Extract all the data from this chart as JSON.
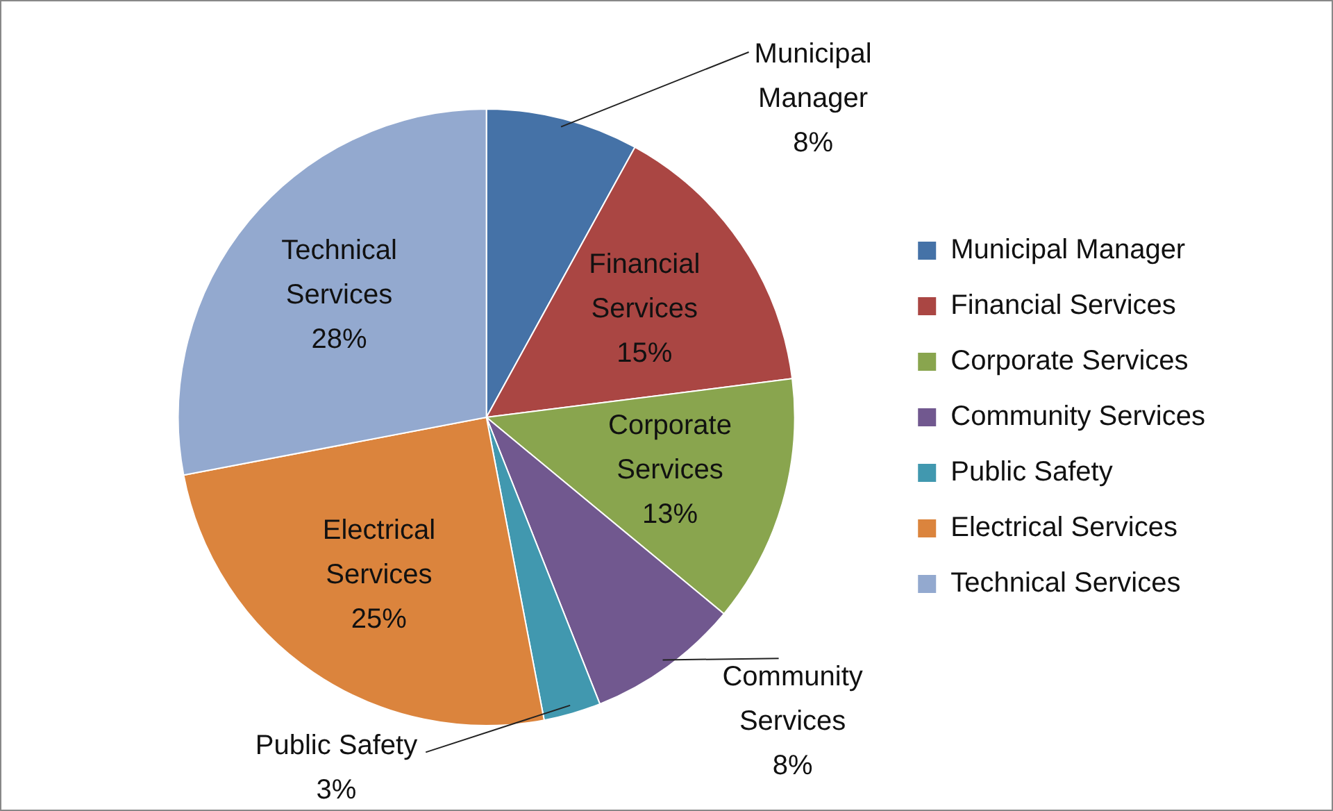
{
  "chart_data": {
    "type": "pie",
    "categories": [
      "Municipal Manager",
      "Financial Services",
      "Corporate Services",
      "Community Services",
      "Public Safety",
      "Electrical Services",
      "Technical Services"
    ],
    "values": [
      8,
      15,
      13,
      8,
      3,
      25,
      28
    ],
    "colors": [
      "#4572a7",
      "#aa4643",
      "#89a54e",
      "#71588f",
      "#4198af",
      "#db843d",
      "#93a9cf"
    ],
    "value_labels": [
      "8%",
      "15%",
      "13%",
      "8%",
      "3%",
      "25%",
      "28%"
    ],
    "legend": "right"
  }
}
